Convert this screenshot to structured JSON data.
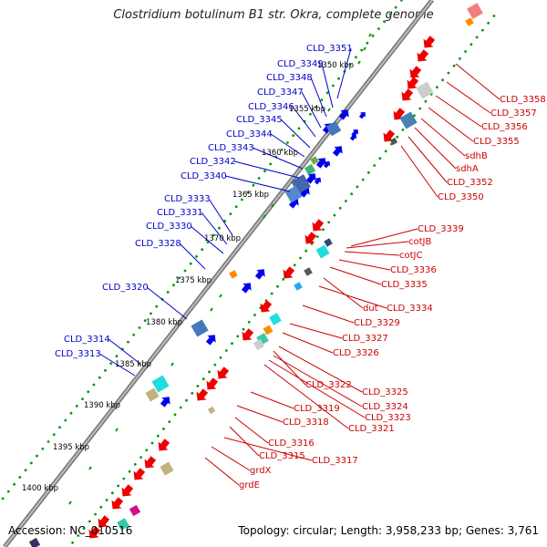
{
  "title": "Clostridium botulinum B1 str. Okra, complete genome",
  "footer": {
    "accession": "Accession: NC_010516",
    "topology": "Topology: circular; Length: 3,958,233 bp; Genes: 3,761"
  },
  "colors": {
    "forward": "#0000ee",
    "reverse": "#ee0000",
    "backbone": "#888888",
    "tick": "#009900"
  },
  "scale_labels": [
    "1350 kbp",
    "1355 kbp",
    "1360 kbp",
    "1365 kbp",
    "1370 kbp",
    "1375 kbp",
    "1380 kbp",
    "1385 kbp",
    "1390 kbp",
    "1395 kbp",
    "1400 kbp"
  ],
  "left_labels": [
    "CLD_3351",
    "CLD_3349",
    "CLD_3348",
    "CLD_3347",
    "CLD_3346",
    "CLD_3345",
    "CLD_3344",
    "CLD_3343",
    "CLD_3342",
    "CLD_3340",
    "CLD_3333",
    "CLD_3331",
    "CLD_3330",
    "CLD_3328",
    "CLD_3320",
    "CLD_3314",
    "CLD_3313"
  ],
  "right_labels": [
    "CLD_3358",
    "CLD_3357",
    "CLD_3356",
    "CLD_3355",
    "sdhB",
    "sdhA",
    "CLD_3352",
    "CLD_3350",
    "CLD_3339",
    "cotJB",
    "cotJC",
    "CLD_3336",
    "CLD_3335",
    "dut",
    "CLD_3334",
    "CLD_3329",
    "CLD_3327",
    "CLD_3326",
    "CLD_3322",
    "CLD_3325",
    "CLD_3324",
    "CLD_3323",
    "CLD_3321",
    "CLD_3319",
    "CLD_3318",
    "CLD_3316",
    "CLD_3315",
    "CLD_3317",
    "grdX",
    "grdE"
  ]
}
